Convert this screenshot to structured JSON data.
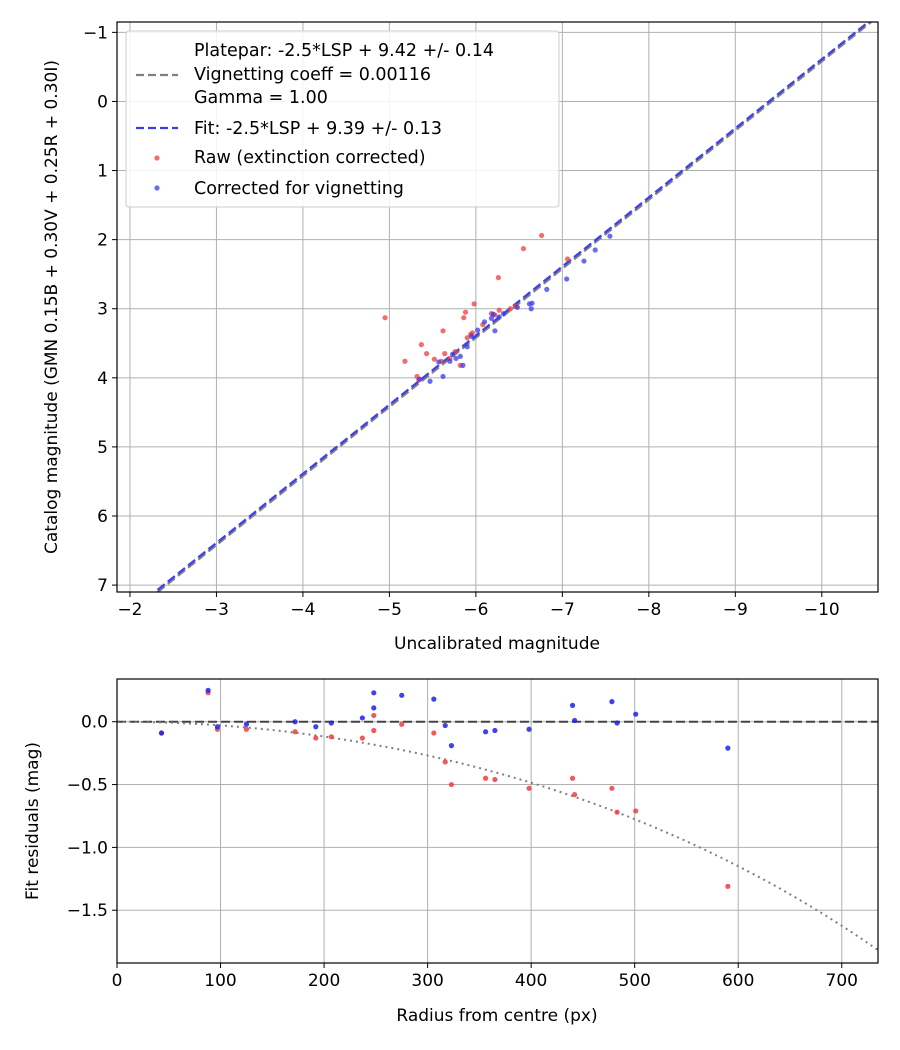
{
  "chart_data": [
    {
      "type": "scatter",
      "xlabel": "Uncalibrated magnitude",
      "ylabel": "Catalog magnitude (GMN 0.15B + 0.30V + 0.25R + 0.30I)",
      "xlim": [
        -1.85,
        -10.65
      ],
      "ylim": [
        7.1,
        -1.15
      ],
      "xticks": [
        -2,
        -3,
        -4,
        -5,
        -6,
        -7,
        -8,
        -9,
        -10
      ],
      "xtick_labels": [
        "−2",
        "−3",
        "−4",
        "−5",
        "−6",
        "−7",
        "−8",
        "−9",
        "−10"
      ],
      "yticks": [
        -1,
        0,
        1,
        2,
        3,
        4,
        5,
        6,
        7
      ],
      "ytick_labels": [
        "−1",
        "0",
        "1",
        "2",
        "3",
        "4",
        "5",
        "6",
        "7"
      ],
      "grid": true,
      "legend": {
        "placement": "top-left",
        "platepar_lines": [
          "Platepar: -2.5*LSP + 9.42 +/- 0.14",
          "Vignetting coeff = 0.00116",
          "Gamma = 1.00"
        ],
        "fit_label": "Fit: -2.5*LSP + 9.39 +/- 0.13",
        "raw_label": "Raw (extinction corrected)",
        "corrected_label": "Corrected for vignetting"
      },
      "lines": [
        {
          "name": "platepar",
          "slope": 1,
          "intercept": 9.42,
          "color": "#7f7f7f",
          "style": "dashed"
        },
        {
          "name": "fit",
          "slope": 1,
          "intercept": 9.39,
          "color": "#3a3ae6",
          "style": "dashed"
        }
      ],
      "series": [
        {
          "name": "Raw (extinction corrected)",
          "color": "#f03c3c",
          "x": [
            -4.95,
            -5.18,
            -5.32,
            -5.34,
            -5.37,
            -5.43,
            -5.52,
            -5.6,
            -5.62,
            -5.64,
            -5.7,
            -5.76,
            -5.82,
            -5.86,
            -5.88,
            -5.9,
            -5.94,
            -5.96,
            -5.98,
            -6.08,
            -6.18,
            -6.22,
            -6.26,
            -6.27,
            -6.4,
            -6.46,
            -6.55,
            -6.76,
            -7.06
          ],
          "y": [
            3.13,
            3.76,
            3.98,
            4.03,
            3.52,
            3.65,
            3.73,
            3.76,
            3.32,
            3.65,
            3.72,
            3.62,
            3.82,
            3.13,
            3.05,
            3.42,
            3.37,
            3.35,
            2.93,
            3.23,
            3.07,
            3.09,
            2.55,
            3.02,
            3.0,
            2.96,
            2.13,
            1.94,
            2.28
          ]
        },
        {
          "name": "Corrected for vignetting",
          "color": "#3a3aee",
          "x": [
            -5.35,
            -5.47,
            -5.57,
            -5.62,
            -5.7,
            -5.73,
            -5.77,
            -5.82,
            -5.85,
            -5.9,
            -5.95,
            -6.02,
            -6.1,
            -6.18,
            -6.2,
            -6.22,
            -6.27,
            -6.32,
            -6.48,
            -6.62,
            -6.64,
            -6.65,
            -6.82,
            -7.05,
            -7.25,
            -7.38,
            -7.55
          ],
          "y": [
            4.02,
            4.05,
            3.77,
            3.98,
            3.76,
            3.66,
            3.72,
            3.69,
            3.82,
            3.55,
            3.4,
            3.31,
            3.19,
            3.14,
            3.08,
            3.32,
            3.12,
            3.07,
            2.98,
            2.93,
            3.0,
            2.92,
            2.72,
            2.57,
            2.31,
            2.15,
            1.95
          ]
        }
      ]
    },
    {
      "type": "scatter",
      "xlabel": "Radius from centre (px)",
      "ylabel": "Fit residuals (mag)",
      "xlim": [
        0,
        735
      ],
      "ylim": [
        -1.92,
        0.34
      ],
      "xticks": [
        0,
        100,
        200,
        300,
        400,
        500,
        600,
        700
      ],
      "xtick_labels": [
        "0",
        "100",
        "200",
        "300",
        "400",
        "500",
        "600",
        "700"
      ],
      "yticks": [
        0.0,
        -0.5,
        -1.0,
        -1.5
      ],
      "ytick_labels": [
        "0.0",
        "−0.5",
        "−1.0",
        "−1.5"
      ],
      "grid": true,
      "reference_line": {
        "y": 0,
        "color": "#444444",
        "style": "dashed"
      },
      "vignetting_curve": {
        "coeff": 0.00116,
        "gamma": 1.0,
        "color": "#7f7f7f",
        "style": "dotted"
      },
      "series": [
        {
          "name": "Raw (extinction corrected)",
          "color": "#f03c3c",
          "x": [
            43,
            88,
            97,
            125,
            172,
            192,
            207,
            237,
            248,
            248,
            275,
            306,
            317,
            323,
            356,
            365,
            398,
            440,
            442,
            478,
            483,
            501,
            590
          ],
          "y": [
            -0.09,
            0.23,
            -0.06,
            -0.06,
            -0.08,
            -0.13,
            -0.12,
            -0.13,
            -0.07,
            0.05,
            -0.02,
            -0.09,
            -0.32,
            -0.5,
            -0.45,
            -0.46,
            -0.53,
            -0.45,
            -0.58,
            -0.53,
            -0.72,
            -0.71,
            -1.31
          ]
        },
        {
          "name": "Corrected for vignetting",
          "color": "#2020ee",
          "x": [
            43,
            88,
            97,
            125,
            172,
            192,
            207,
            237,
            248,
            248,
            275,
            306,
            317,
            323,
            356,
            365,
            398,
            440,
            442,
            478,
            483,
            501,
            590
          ],
          "y": [
            -0.09,
            0.25,
            -0.04,
            -0.02,
            0.0,
            -0.04,
            -0.01,
            0.03,
            0.11,
            0.23,
            0.21,
            0.18,
            -0.03,
            -0.19,
            -0.08,
            -0.07,
            -0.06,
            0.13,
            0.01,
            0.16,
            -0.01,
            0.06,
            -0.21
          ]
        }
      ]
    }
  ]
}
